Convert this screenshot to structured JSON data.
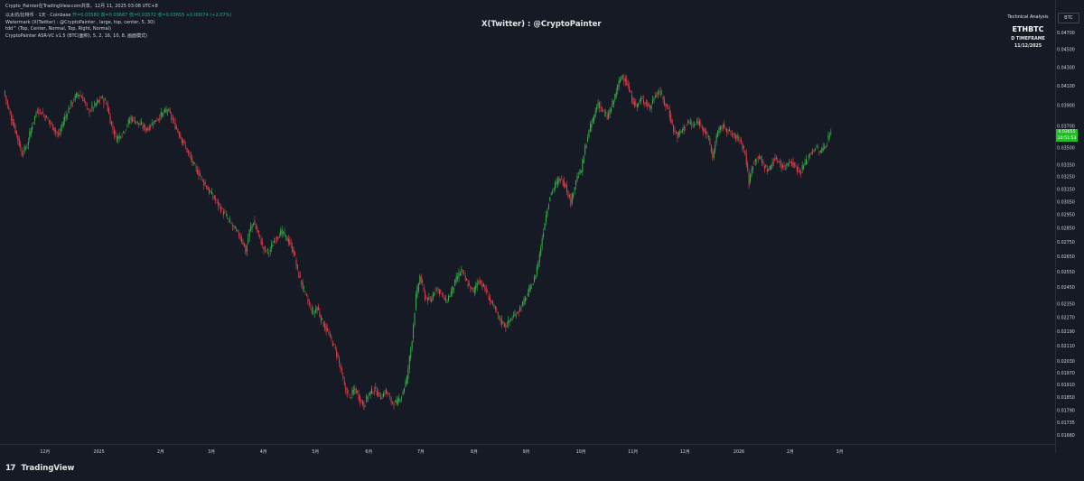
{
  "header": {
    "title": "Crypto_Painter在TradingView.com共享。12月 11, 2025 03:08 UTC+8"
  },
  "legend": {
    "symbol_line_label": "以太坊/比特币 · 1天 · Coinbase",
    "ohlc_text": "开=0.03580 高=0.03687 低=0.03572 收=0.03655 +0.00074 (+2.07%)",
    "watermark_line": "Watermark (X(Twitter) : @CryptoPainter , large, top, center, 5, 30)",
    "ta_line": "tdd^ (Top, Center, Normal, Top, Right, Normal)",
    "indicator_line": "CryptoPainter ASR-VC v1.5 (BTC(面积), 5, 2, 16, 10, 8, 画面模式)"
  },
  "watermark": {
    "text": "X(Twitter) : @CryptoPainter"
  },
  "technical_box": {
    "line1": "Technical Analysis",
    "line2": "ETHBTC",
    "line3": "D TIMEFRAME",
    "line4": "11/12/2025"
  },
  "axis": {
    "currency_button": "BTC",
    "last_price_label": "0.03655",
    "last_price_sub": "10:51:53"
  },
  "footer": {
    "logo_glyph": "17",
    "brand": "TradingView"
  },
  "colors": {
    "background": "#161a25",
    "up": "#26a69a",
    "down": "#ef5350",
    "up_green": "#3bb34a",
    "down_red": "#e8404a",
    "text": "#d1d4dc",
    "last_price_bg": "#1fbf24"
  },
  "chart_data": {
    "type": "candlestick",
    "symbol": "ETHBTC",
    "timeframe": "D",
    "ylim": [
      0.016,
      0.048
    ],
    "y_ticks": [
      "0.04700",
      "0.04500",
      "0.04300",
      "0.04100",
      "0.03900",
      "0.03700",
      "0.03500",
      "0.03350",
      "0.03250",
      "0.03150",
      "0.03050",
      "0.02950",
      "0.02850",
      "0.02750",
      "0.02650",
      "0.02550",
      "0.02450",
      "0.02350",
      "0.02270",
      "0.02190",
      "0.02110",
      "0.02030",
      "0.01970",
      "0.01910",
      "0.01850",
      "0.01790",
      "0.01735",
      "0.01680"
    ],
    "x_ticks": [
      "12月",
      "2025",
      "2月",
      "3月",
      "4月",
      "5月",
      "6月",
      "7月",
      "8月",
      "9月",
      "10月",
      "11月",
      "12月",
      "2026",
      "2月",
      "3月"
    ],
    "price_path": [
      [
        0,
        0.0405
      ],
      [
        4,
        0.0385
      ],
      [
        10,
        0.0362
      ],
      [
        14,
        0.0345
      ],
      [
        18,
        0.0352
      ],
      [
        22,
        0.0372
      ],
      [
        26,
        0.0386
      ],
      [
        30,
        0.0382
      ],
      [
        34,
        0.0376
      ],
      [
        38,
        0.0369
      ],
      [
        42,
        0.0361
      ],
      [
        47,
        0.0378
      ],
      [
        52,
        0.0392
      ],
      [
        57,
        0.0402
      ],
      [
        61,
        0.0397
      ],
      [
        65,
        0.0384
      ],
      [
        70,
        0.039
      ],
      [
        75,
        0.0398
      ],
      [
        79,
        0.0392
      ],
      [
        83,
        0.037
      ],
      [
        87,
        0.0358
      ],
      [
        92,
        0.0365
      ],
      [
        98,
        0.0378
      ],
      [
        104,
        0.0372
      ],
      [
        110,
        0.0367
      ],
      [
        118,
        0.0377
      ],
      [
        126,
        0.0386
      ],
      [
        132,
        0.037
      ],
      [
        138,
        0.0355
      ],
      [
        142,
        0.0345
      ],
      [
        146,
        0.0335
      ],
      [
        150,
        0.0328
      ],
      [
        154,
        0.032
      ],
      [
        158,
        0.0313
      ],
      [
        163,
        0.0306
      ],
      [
        168,
        0.0298
      ],
      [
        174,
        0.0289
      ],
      [
        178,
        0.0284
      ],
      [
        181,
        0.028
      ],
      [
        184,
        0.0275
      ],
      [
        186,
        0.0268
      ],
      [
        189,
        0.0283
      ],
      [
        192,
        0.029
      ],
      [
        196,
        0.028
      ],
      [
        200,
        0.027
      ],
      [
        204,
        0.0268
      ],
      [
        209,
        0.0278
      ],
      [
        214,
        0.0282
      ],
      [
        219,
        0.0276
      ],
      [
        223,
        0.0268
      ],
      [
        226,
        0.0255
      ],
      [
        230,
        0.0245
      ],
      [
        234,
        0.0236
      ],
      [
        238,
        0.0229
      ],
      [
        241,
        0.0233
      ],
      [
        244,
        0.0226
      ],
      [
        248,
        0.022
      ],
      [
        252,
        0.0214
      ],
      [
        256,
        0.0207
      ],
      [
        259,
        0.0199
      ],
      [
        262,
        0.019
      ],
      [
        266,
        0.0185
      ],
      [
        270,
        0.0189
      ],
      [
        274,
        0.0184
      ],
      [
        277,
        0.0181
      ],
      [
        280,
        0.0186
      ],
      [
        285,
        0.0189
      ],
      [
        290,
        0.0185
      ],
      [
        294,
        0.0188
      ],
      [
        298,
        0.0183
      ],
      [
        302,
        0.0182
      ],
      [
        306,
        0.0186
      ],
      [
        310,
        0.0194
      ],
      [
        314,
        0.0215
      ],
      [
        317,
        0.0239
      ],
      [
        320,
        0.0252
      ],
      [
        324,
        0.0239
      ],
      [
        328,
        0.0236
      ],
      [
        332,
        0.0245
      ],
      [
        336,
        0.0242
      ],
      [
        340,
        0.0236
      ],
      [
        344,
        0.0242
      ],
      [
        348,
        0.025
      ],
      [
        352,
        0.0256
      ],
      [
        356,
        0.0248
      ],
      [
        361,
        0.0242
      ],
      [
        365,
        0.025
      ],
      [
        370,
        0.0244
      ],
      [
        374,
        0.0237
      ],
      [
        378,
        0.0231
      ],
      [
        382,
        0.0225
      ],
      [
        386,
        0.0222
      ],
      [
        390,
        0.0226
      ],
      [
        395,
        0.023
      ],
      [
        400,
        0.0236
      ],
      [
        404,
        0.0243
      ],
      [
        408,
        0.025
      ],
      [
        412,
        0.0266
      ],
      [
        416,
        0.029
      ],
      [
        420,
        0.031
      ],
      [
        424,
        0.0318
      ],
      [
        428,
        0.0324
      ],
      [
        432,
        0.0318
      ],
      [
        436,
        0.0304
      ],
      [
        440,
        0.0323
      ],
      [
        444,
        0.033
      ],
      [
        447,
        0.035
      ],
      [
        450,
        0.0365
      ],
      [
        454,
        0.038
      ],
      [
        457,
        0.0393
      ],
      [
        460,
        0.0385
      ],
      [
        464,
        0.0378
      ],
      [
        468,
        0.0391
      ],
      [
        472,
        0.0409
      ],
      [
        475,
        0.0421
      ],
      [
        478,
        0.0417
      ],
      [
        482,
        0.04
      ],
      [
        486,
        0.0389
      ],
      [
        490,
        0.0396
      ],
      [
        494,
        0.0393
      ],
      [
        497,
        0.0387
      ],
      [
        500,
        0.0399
      ],
      [
        504,
        0.0405
      ],
      [
        508,
        0.0392
      ],
      [
        511,
        0.0386
      ],
      [
        515,
        0.0366
      ],
      [
        518,
        0.0361
      ],
      [
        522,
        0.0367
      ],
      [
        526,
        0.0374
      ],
      [
        530,
        0.037
      ],
      [
        534,
        0.0374
      ],
      [
        538,
        0.0368
      ],
      [
        542,
        0.0358
      ],
      [
        545,
        0.0341
      ],
      [
        548,
        0.0361
      ],
      [
        552,
        0.037
      ],
      [
        556,
        0.0367
      ],
      [
        559,
        0.0363
      ],
      [
        562,
        0.036
      ],
      [
        566,
        0.0358
      ],
      [
        570,
        0.0345
      ],
      [
        573,
        0.032
      ],
      [
        576,
        0.0336
      ],
      [
        580,
        0.0343
      ],
      [
        584,
        0.0335
      ],
      [
        588,
        0.033
      ],
      [
        592,
        0.034
      ],
      [
        596,
        0.0338
      ],
      [
        600,
        0.0332
      ],
      [
        604,
        0.0339
      ],
      [
        608,
        0.0335
      ],
      [
        612,
        0.0329
      ],
      [
        616,
        0.0336
      ],
      [
        620,
        0.0345
      ],
      [
        624,
        0.035
      ],
      [
        628,
        0.0346
      ],
      [
        632,
        0.0353
      ],
      [
        636,
        0.0366
      ]
    ],
    "x_tick_day_index": [
      35,
      76,
      125,
      164,
      204,
      244,
      285,
      325,
      366,
      406,
      447,
      487,
      527,
      568,
      609,
      647
    ],
    "total_days": 660
  }
}
